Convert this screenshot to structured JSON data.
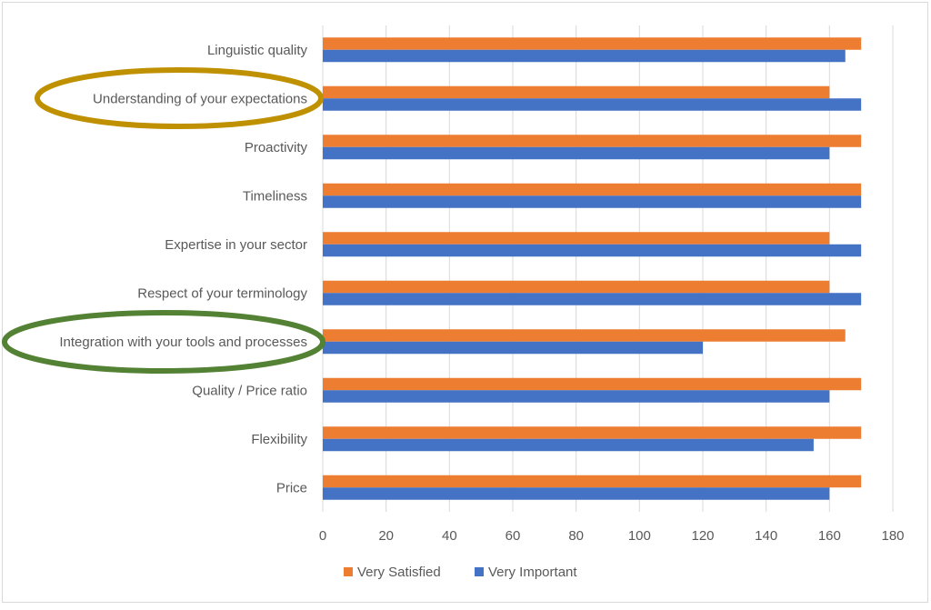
{
  "chart_data": {
    "type": "bar",
    "orientation": "horizontal",
    "title": "",
    "xlabel": "",
    "ylabel": "",
    "xlim": [
      0,
      180
    ],
    "xticks": [
      0,
      20,
      40,
      60,
      80,
      100,
      120,
      140,
      160,
      180
    ],
    "grid": true,
    "legend_position": "bottom",
    "categories": [
      "Linguistic quality",
      "Understanding of your expectations",
      "Proactivity",
      "Timeliness",
      "Expertise in your sector",
      "Respect of your terminology",
      "Integration with your tools and processes",
      "Quality / Price ratio",
      "Flexibility",
      "Price"
    ],
    "series": [
      {
        "name": "Very Satisfied",
        "color": "#ED7D31",
        "values": [
          170,
          160,
          170,
          170,
          160,
          160,
          165,
          170,
          170,
          170
        ]
      },
      {
        "name": "Very Important",
        "color": "#4472C4",
        "values": [
          165,
          170,
          160,
          170,
          170,
          170,
          120,
          160,
          155,
          160
        ]
      }
    ],
    "annotations": [
      {
        "type": "ellipse",
        "target": "Understanding of your expectations",
        "color": "#BF9000"
      },
      {
        "type": "ellipse",
        "target": "Integration with your tools and processes",
        "color": "#548235"
      }
    ]
  }
}
